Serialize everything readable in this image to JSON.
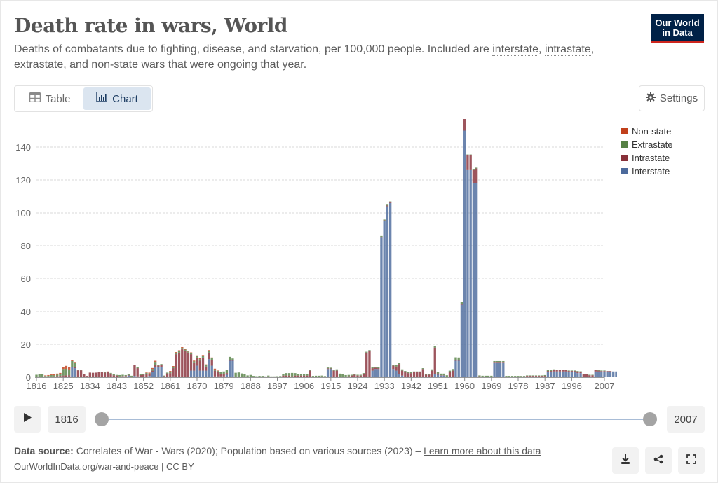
{
  "header": {
    "title": "Death rate in wars, World",
    "subtitle_parts": [
      "Deaths of combatants due to fighting, disease, and starvation, per 100,000 people. Included are ",
      "interstate",
      ", ",
      "intrastate",
      ", ",
      "extrastate",
      ", and ",
      "non-state",
      " wars that were ongoing that year."
    ],
    "logo_line1": "Our World",
    "logo_line2": "in Data"
  },
  "tabs": [
    {
      "label": "Table",
      "icon": "table-icon",
      "active": false
    },
    {
      "label": "Chart",
      "icon": "chart-icon",
      "active": true
    }
  ],
  "settings_label": "Settings",
  "timeline": {
    "start_year": "1816",
    "end_year": "2007",
    "play_icon": "play-icon"
  },
  "footer": {
    "source_label": "Data source:",
    "source_text": " Correlates of War - Wars (2020); Population based on various sources (2023) – ",
    "learn_more": "Learn more about this data",
    "url_text": "OurWorldInData.org/war-and-peace | CC BY",
    "buttons": [
      "download-icon",
      "share-icon",
      "fullscreen-icon"
    ]
  },
  "chart_data": {
    "type": "bar",
    "stacked": true,
    "title": "Death rate in wars, World",
    "xlabel": "",
    "ylabel": "",
    "ylim": [
      0,
      150
    ],
    "yticks": [
      0,
      20,
      40,
      60,
      80,
      100,
      120,
      140
    ],
    "xticks": [
      "1816",
      "1825",
      "1834",
      "1843",
      "1852",
      "1861",
      "1870",
      "1879",
      "1888",
      "1897",
      "1906",
      "1915",
      "1924",
      "1933",
      "1942",
      "1951",
      "1960",
      "1969",
      "1978",
      "1987",
      "1996",
      "2007"
    ],
    "grid": true,
    "legend_position": "right",
    "x_start": 1816,
    "x_end": 2007,
    "series": [
      {
        "name": "Non-state",
        "color": "#c1401b",
        "values": [
          0,
          0,
          0,
          0.3,
          0.5,
          0.8,
          0.6,
          0.7,
          0.8,
          1.2,
          1.8,
          1.5,
          0.8,
          0.3,
          0,
          0,
          0,
          0,
          0,
          0,
          0,
          0,
          0,
          0.3,
          0.2,
          0,
          0,
          0,
          0,
          0,
          0,
          0,
          0,
          0,
          0,
          0,
          0,
          0.3,
          0.5,
          0.6,
          0.7,
          0,
          0,
          0,
          0,
          0.6,
          0.6,
          0.6,
          0.6,
          0.5,
          0.5,
          0.5,
          0.5,
          0.5,
          0.5,
          0.5,
          0.5,
          0.5,
          0.5,
          0.5,
          0.5,
          0.3,
          0,
          0,
          0,
          0,
          0,
          0,
          0,
          0,
          0,
          0,
          0,
          0,
          0,
          0,
          0,
          0,
          0,
          0,
          0,
          0,
          0,
          0,
          0,
          0,
          0,
          0,
          0,
          0,
          0,
          0,
          0,
          0,
          0,
          0,
          0,
          0,
          0,
          0,
          0,
          0,
          0,
          0,
          0,
          0,
          0,
          0,
          0,
          0,
          0,
          0,
          0,
          0,
          0,
          0,
          0,
          0,
          0,
          0,
          0,
          0,
          0,
          0,
          0,
          0,
          0,
          0,
          0,
          0,
          0,
          0,
          0,
          0,
          0,
          0,
          0,
          0,
          0,
          0,
          0,
          0,
          0,
          0,
          0,
          0,
          0,
          0,
          0,
          0,
          0,
          0,
          0,
          0,
          0,
          0,
          0,
          0,
          0,
          0,
          0,
          0,
          0,
          0,
          0,
          0,
          0,
          0,
          0,
          0,
          0,
          0,
          0,
          0,
          0,
          0,
          0,
          0,
          0,
          0,
          0,
          0,
          0,
          0,
          0,
          0,
          0,
          0,
          0,
          0,
          0,
          0,
          0,
          0,
          0,
          0,
          0,
          0,
          0,
          0,
          0,
          0,
          0,
          0,
          0,
          0
        ]
      },
      {
        "name": "Extrastate",
        "color": "#578145",
        "values": [
          1.5,
          2,
          2,
          0.3,
          0.5,
          0.8,
          0.6,
          0.8,
          1,
          4,
          4,
          3.5,
          3.5,
          3,
          0.2,
          0.2,
          0,
          0,
          0,
          0,
          0,
          0,
          0,
          0.2,
          0.3,
          0.4,
          0.5,
          0.4,
          0.8,
          0.8,
          0.5,
          0.5,
          0.5,
          0.2,
          0.5,
          0.5,
          0.5,
          0.8,
          0.5,
          1,
          1.8,
          0.5,
          0.5,
          0.3,
          0.5,
          0.7,
          0.7,
          0.7,
          0.8,
          0.8,
          0.8,
          0.6,
          0.6,
          0.6,
          0.8,
          1,
          1,
          0.8,
          1,
          1,
          0.7,
          0.8,
          1.2,
          1.5,
          1.8,
          2,
          1,
          2.5,
          2.5,
          2,
          1.5,
          0.8,
          1,
          0.6,
          0.3,
          0.5,
          0.5,
          0.3,
          0.5,
          0.2,
          0.2,
          0.3,
          0.5,
          1,
          1.5,
          1.5,
          2,
          1.5,
          1,
          0.8,
          0.8,
          0.8,
          0.5,
          0.5,
          0.5,
          0.5,
          0.5,
          0.3,
          0.5,
          0.5,
          0.5,
          0.8,
          1.8,
          1.5,
          1,
          0.8,
          0.5,
          0.5,
          0.5,
          0.5,
          0.5,
          0.5,
          0.5,
          0.5,
          0.5,
          0.5,
          0.5,
          0.5,
          0.5,
          0.5,
          0.5,
          0.8,
          0.8,
          0.8,
          0.8,
          0.5,
          0.5,
          0.5,
          0.5,
          0.5,
          0.5,
          0.5,
          0.5,
          0.8,
          0.8,
          1,
          1,
          1,
          1,
          1,
          1,
          1.5,
          1.5,
          1.2,
          0.5,
          0.5,
          0.5,
          0.5,
          0.5,
          0.5,
          0.5,
          0.5,
          0.5,
          0.5,
          0.5,
          0.5,
          0.5,
          0.5,
          0.5,
          0.5,
          0.5,
          0.5,
          0.5,
          0.3,
          0.3,
          0.3,
          0.3,
          0.3,
          0.3,
          0.3,
          0.3,
          0.5,
          0.5,
          0.5,
          0.5,
          0.3,
          0.3,
          0.3,
          0.3,
          0.3,
          0.3,
          0.3,
          0.3,
          0.3,
          0.3,
          0.3,
          0.3,
          0.3,
          0.3,
          0.3,
          0.3,
          0.3
        ]
      },
      {
        "name": "Intrastate",
        "color": "#883039",
        "values": [
          0,
          0,
          0,
          0.5,
          0.3,
          0.5,
          0.5,
          0.5,
          0.5,
          0.5,
          0.8,
          0.7,
          0.3,
          0.5,
          4,
          4,
          2,
          0.8,
          2.8,
          2.7,
          2.8,
          3,
          3,
          2.8,
          3,
          2,
          1,
          0.8,
          0.2,
          0.2,
          0.3,
          0.3,
          0.2,
          6.5,
          5,
          1.3,
          1.5,
          1.8,
          1,
          1,
          1.5,
          1,
          1.5,
          0.5,
          2,
          2.5,
          5,
          14,
          15,
          17,
          16,
          15,
          10,
          5,
          5,
          6,
          8,
          2.5,
          4,
          3.5,
          3.5,
          2.5,
          1.3,
          1.5,
          1,
          0.4,
          0.4,
          0.2,
          0.4,
          0.3,
          0.3,
          0.3,
          0.4,
          0.2,
          0.3,
          0.3,
          0.3,
          0.2,
          0.5,
          0.3,
          0.3,
          0.3,
          0.2,
          1,
          1,
          1,
          0.6,
          1,
          1,
          1,
          1,
          1,
          4,
          0.3,
          0.4,
          0.4,
          0.5,
          0.4,
          0.4,
          0.3,
          4,
          4,
          0.4,
          0.3,
          0.3,
          0.6,
          1,
          1.5,
          1,
          1,
          2,
          15,
          16,
          1.5,
          0.8,
          0.5,
          0.5,
          0.5,
          0.5,
          0.5,
          2,
          2.5,
          6,
          3,
          3,
          2.5,
          2.5,
          3,
          3,
          3,
          5,
          1.5,
          1.5,
          4,
          16,
          0.8,
          0.2,
          0.2,
          0.2,
          3,
          4,
          0.6,
          0.5,
          0.5,
          10,
          9,
          9,
          8,
          9,
          0.6,
          0.4,
          0.4,
          0.4,
          0.4,
          0.3,
          0.3,
          0.3,
          0.3,
          0.3,
          0.3,
          0.3,
          0.3,
          0.3,
          0.5,
          0.5,
          0.8,
          0.8,
          0.8,
          0.8,
          0.8,
          0.8,
          0.8,
          0.8,
          0.8,
          0.8,
          0.8,
          0.8,
          0.8,
          0.8,
          0.8,
          0.8,
          0.8,
          1,
          0.8,
          1.5,
          1.5,
          1,
          1,
          0.8,
          0.5,
          0.3,
          0.3,
          0.3,
          0.3
        ]
      },
      {
        "name": "Interstate",
        "color": "#4c6a9c",
        "values": [
          0,
          0,
          0,
          0,
          0,
          0,
          0,
          0.2,
          0.3,
          0.5,
          0.3,
          0.5,
          6,
          5.5,
          0.2,
          0.2,
          0,
          0,
          0,
          0,
          0,
          0,
          0,
          0,
          0,
          0.2,
          0.2,
          0.2,
          0.3,
          0.5,
          0.5,
          1,
          0.2,
          0.8,
          0.5,
          0,
          0,
          0,
          0.8,
          3,
          6,
          6,
          6,
          0.2,
          0.3,
          0,
          0.5,
          0,
          0,
          0,
          0,
          0,
          4,
          4,
          7,
          4,
          4,
          4,
          11,
          7,
          0.5,
          0.5,
          0.5,
          0.5,
          1.5,
          10,
          10,
          0,
          0,
          0,
          0,
          0,
          0,
          0,
          0,
          0,
          0,
          0,
          0,
          0,
          0,
          0,
          0,
          0,
          0,
          0,
          0,
          0,
          0,
          0,
          0,
          0,
          0,
          0,
          0,
          0,
          0,
          0,
          5,
          5,
          0,
          0,
          0,
          0,
          0,
          0,
          0,
          0,
          0,
          0,
          0,
          0,
          0,
          4,
          5,
          5,
          85,
          95,
          104,
          106,
          5,
          4,
          2,
          1,
          0,
          0,
          0,
          0,
          0,
          0,
          0,
          0,
          0,
          0,
          2,
          1.5,
          1,
          1,
          0,
          0,
          0,
          10,
          10,
          44,
          150,
          126,
          126,
          118,
          118,
          0,
          0,
          0,
          0,
          0,
          9,
          9,
          9,
          9,
          0,
          0,
          0,
          0,
          0,
          0,
          0,
          0,
          0,
          0,
          0,
          0,
          0,
          0,
          3,
          3,
          3.5,
          3.5,
          3.5,
          3.5,
          3.5,
          3,
          3,
          3,
          2.5,
          2.5,
          0.2,
          0.2,
          0.2,
          0.2,
          3.5,
          3.5,
          3.5,
          3.5,
          3.5,
          3.5,
          3.5,
          3.5,
          3.5,
          3.3,
          0,
          0,
          0,
          0,
          0,
          0,
          0,
          0,
          0,
          0,
          0,
          0,
          0,
          1,
          1,
          0.5,
          0,
          0,
          0,
          0,
          0,
          0,
          0
        ]
      }
    ]
  }
}
